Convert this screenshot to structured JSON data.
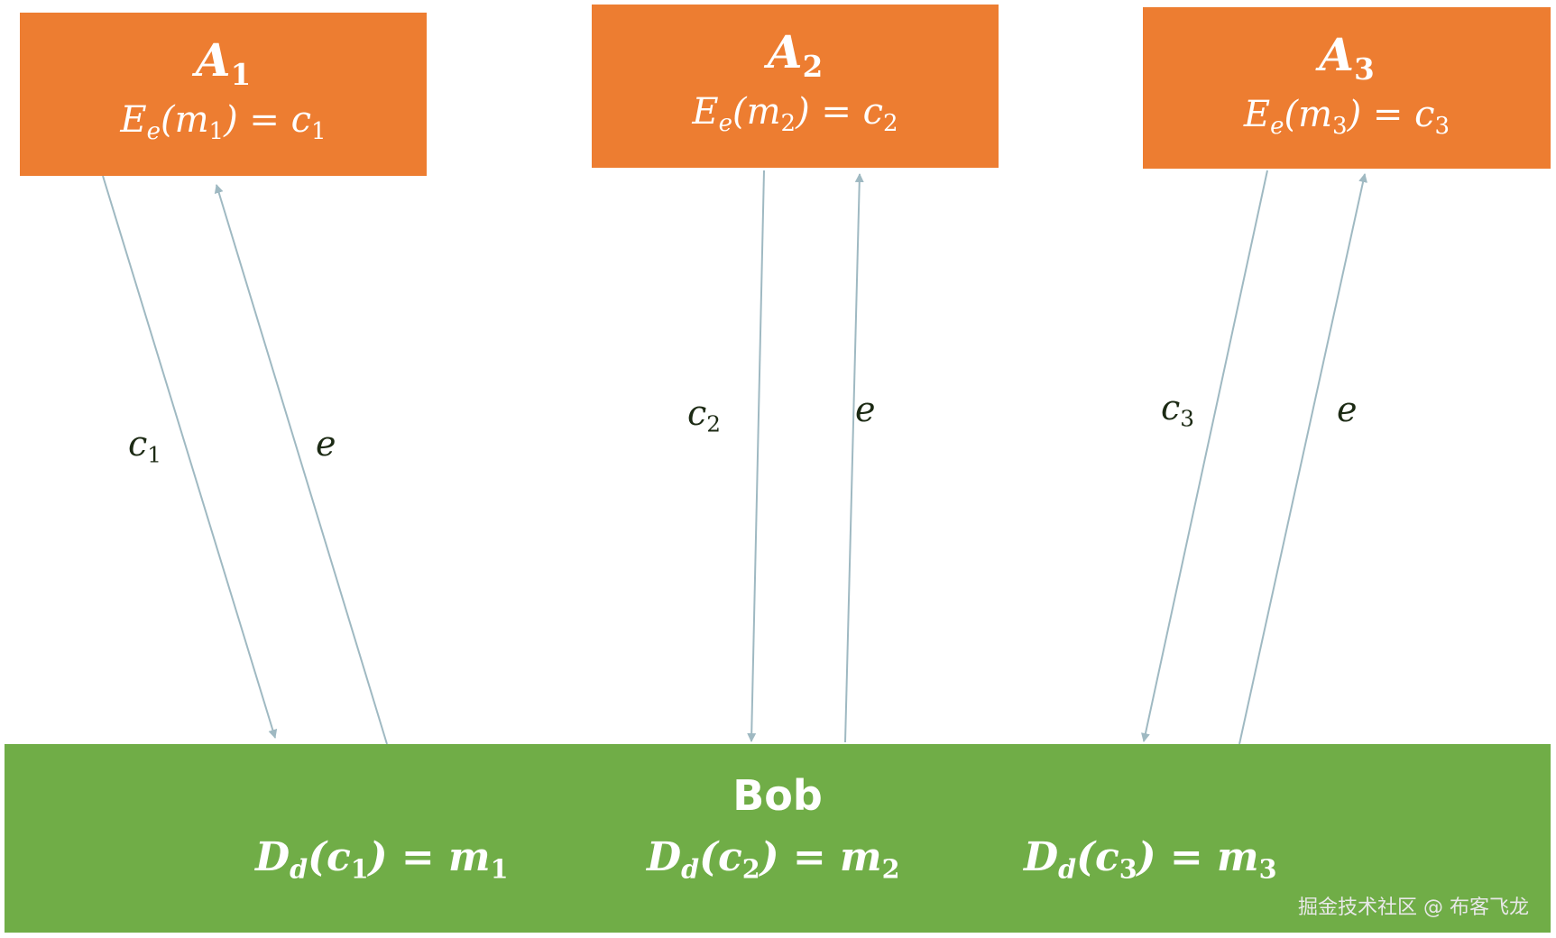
{
  "colors": {
    "sender_box": "#ED7D31",
    "receiver_box": "#70AD47",
    "arrow": "#9FB9C2"
  },
  "senders": [
    {
      "name": "A",
      "index": "1",
      "formula": {
        "E": "E",
        "key": "e",
        "m": "m",
        "eq": "=",
        "c": "c",
        "index": "1"
      }
    },
    {
      "name": "A",
      "index": "2",
      "formula": {
        "E": "E",
        "key": "e",
        "m": "m",
        "eq": "=",
        "c": "c",
        "index": "2"
      }
    },
    {
      "name": "A",
      "index": "3",
      "formula": {
        "E": "E",
        "key": "e",
        "m": "m",
        "eq": "=",
        "c": "c",
        "index": "3"
      }
    }
  ],
  "arrow_labels": [
    {
      "text": "c",
      "index": "1"
    },
    {
      "text": "e"
    },
    {
      "text": "c",
      "index": "2"
    },
    {
      "text": "e"
    },
    {
      "text": "c",
      "index": "3"
    },
    {
      "text": "e"
    }
  ],
  "receiver": {
    "name": "Bob",
    "decryptions": [
      {
        "D": "D",
        "key": "d",
        "c": "c",
        "index": "1",
        "eq": "=",
        "m": "m"
      },
      {
        "D": "D",
        "key": "d",
        "c": "c",
        "index": "2",
        "eq": "=",
        "m": "m"
      },
      {
        "D": "D",
        "key": "d",
        "c": "c",
        "index": "3",
        "eq": "=",
        "m": "m"
      }
    ]
  },
  "watermark": "掘金技术社区 @ 布客飞龙"
}
